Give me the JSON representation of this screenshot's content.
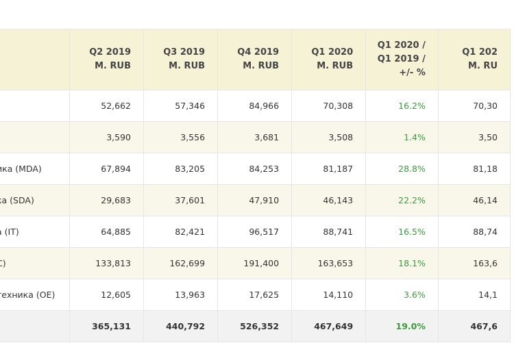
{
  "header": {
    "col0": "",
    "cols": [
      {
        "l1": "Q2 2019",
        "l2": "M. RUB",
        "l3": ""
      },
      {
        "l1": "Q3 2019",
        "l2": "M. RUB",
        "l3": ""
      },
      {
        "l1": "Q4 2019",
        "l2": "M. RUB",
        "l3": ""
      },
      {
        "l1": "Q1 2020",
        "l2": "M. RUB",
        "l3": ""
      },
      {
        "l1": "Q1 2020 /",
        "l2": "Q1 2019 /",
        "l3": "+/- %"
      },
      {
        "l1": "Q1 202",
        "l2": "M. RU",
        "l3": ""
      }
    ]
  },
  "rows": [
    {
      "label": "",
      "q2": "52,662",
      "q3": "57,346",
      "q4": "84,966",
      "q1": "70,308",
      "pct": "16.2%",
      "last": "70,30"
    },
    {
      "label": "",
      "q2": "3,590",
      "q3": "3,556",
      "q4": "3,681",
      "q1": "3,508",
      "pct": "1.4%",
      "last": "3,50"
    },
    {
      "label": "ика (MDA)",
      "q2": "67,894",
      "q3": "83,205",
      "q4": "84,253",
      "q1": "81,187",
      "pct": "28.8%",
      "last": "81,18"
    },
    {
      "label": "ка (SDA)",
      "q2": "29,683",
      "q3": "37,601",
      "q4": "47,910",
      "q1": "46,143",
      "pct": "22.2%",
      "last": "46,14"
    },
    {
      "label": "а (IT)",
      "q2": "64,885",
      "q3": "82,421",
      "q4": "96,517",
      "q1": "88,741",
      "pct": "16.5%",
      "last": "88,74"
    },
    {
      "label": "C)",
      "q2": "133,813",
      "q3": "162,699",
      "q4": "191,400",
      "q1": "163,653",
      "pct": "18.1%",
      "last": "163,6"
    },
    {
      "label": "техника (OE)",
      "q2": "12,605",
      "q3": "13,963",
      "q4": "17,625",
      "q1": "14,110",
      "pct": "3.6%",
      "last": "14,1"
    },
    {
      "label": "",
      "q2": "365,131",
      "q3": "440,792",
      "q4": "526,352",
      "q1": "467,649",
      "pct": "19.0%",
      "last": "467,6"
    }
  ],
  "colors": {
    "header_bg": "#f5f2d6",
    "alt_row_bg": "#f8f7ea",
    "total_bg": "#f2f2f2",
    "pct_green": "#3d9a3d"
  }
}
